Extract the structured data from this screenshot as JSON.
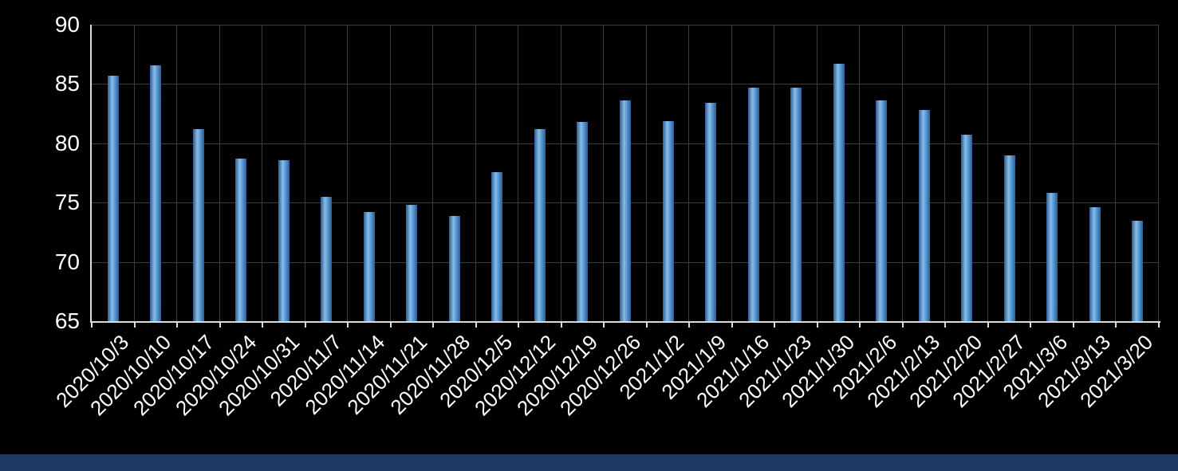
{
  "chart_data": {
    "type": "bar",
    "title": "",
    "xlabel": "",
    "ylabel": "",
    "categories": [
      "2020/10/3",
      "2020/10/10",
      "2020/10/17",
      "2020/10/24",
      "2020/10/31",
      "2020/11/7",
      "2020/11/14",
      "2020/11/21",
      "2020/11/28",
      "2020/12/5",
      "2020/12/12",
      "2020/12/19",
      "2020/12/26",
      "2021/1/2",
      "2021/1/9",
      "2021/1/16",
      "2021/1/23",
      "2021/1/30",
      "2021/2/6",
      "2021/2/13",
      "2021/2/20",
      "2021/2/27",
      "2021/3/6",
      "2021/3/13",
      "2021/3/20"
    ],
    "values": [
      85.7,
      86.6,
      81.2,
      78.7,
      78.6,
      75.5,
      74.2,
      74.8,
      73.9,
      77.6,
      81.2,
      81.8,
      83.6,
      81.9,
      83.4,
      84.7,
      84.7,
      86.7,
      83.6,
      82.8,
      80.7,
      79.0,
      75.8,
      74.6,
      73.5
    ],
    "ylim": [
      65,
      90
    ],
    "yticks": [
      65,
      70,
      75,
      80,
      85,
      90
    ],
    "grid": true,
    "legend": false,
    "colors": {
      "background": "#000000",
      "bar_mid": "#5b9bd5",
      "bar_light": "#88bee9",
      "bar_dark": "#2e5d94",
      "axis": "#dcdcdc",
      "gridline": "#3d3d3d",
      "label": "#ffffff",
      "bottom_strip": "#1f3864"
    }
  }
}
